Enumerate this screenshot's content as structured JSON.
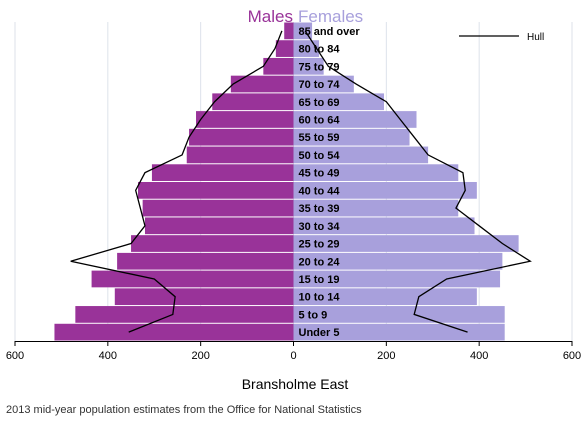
{
  "chart_data": {
    "type": "bar",
    "orientation": "horizontal",
    "layout": "population-pyramid",
    "title_left": "Males",
    "title_right": "Females",
    "xlabel": "Bransholme East",
    "xlim": [
      -600,
      600
    ],
    "xticks": [
      -600,
      -400,
      -200,
      0,
      200,
      400,
      600
    ],
    "xtick_labels": [
      "600",
      "400",
      "200",
      "0",
      "200",
      "400",
      "600"
    ],
    "grid": "vertical",
    "legend_position": "top-right",
    "categories": [
      "Under 5",
      "5 to 9",
      "10 to 14",
      "15 to 19",
      "20 to 24",
      "25 to 29",
      "30 to 34",
      "35 to 39",
      "40 to 44",
      "45 to 49",
      "50 to 54",
      "55 to 59",
      "60 to 64",
      "65 to 69",
      "70 to 74",
      "75 to 79",
      "80 to 84",
      "85 and over"
    ],
    "series": [
      {
        "role": "males",
        "color": "#993399",
        "values": [
          515,
          470,
          385,
          435,
          380,
          350,
          320,
          325,
          335,
          305,
          230,
          225,
          210,
          175,
          135,
          65,
          38,
          20
        ]
      },
      {
        "role": "females",
        "color": "#a8a0dc",
        "values": [
          455,
          455,
          395,
          445,
          450,
          485,
          390,
          355,
          395,
          355,
          290,
          250,
          265,
          195,
          130,
          65,
          55,
          40
        ]
      },
      {
        "name": "Hull",
        "type": "line",
        "color": "#000000",
        "males": [
          355,
          260,
          255,
          300,
          480,
          350,
          320,
          330,
          340,
          320,
          240,
          225,
          200,
          170,
          130,
          65,
          40,
          25
        ],
        "females": [
          375,
          260,
          270,
          330,
          510,
          450,
          400,
          350,
          370,
          365,
          290,
          260,
          230,
          200,
          135,
          75,
          50,
          25
        ]
      }
    ]
  },
  "caption": "2013 mid-year population estimates from the Office for National Statistics"
}
